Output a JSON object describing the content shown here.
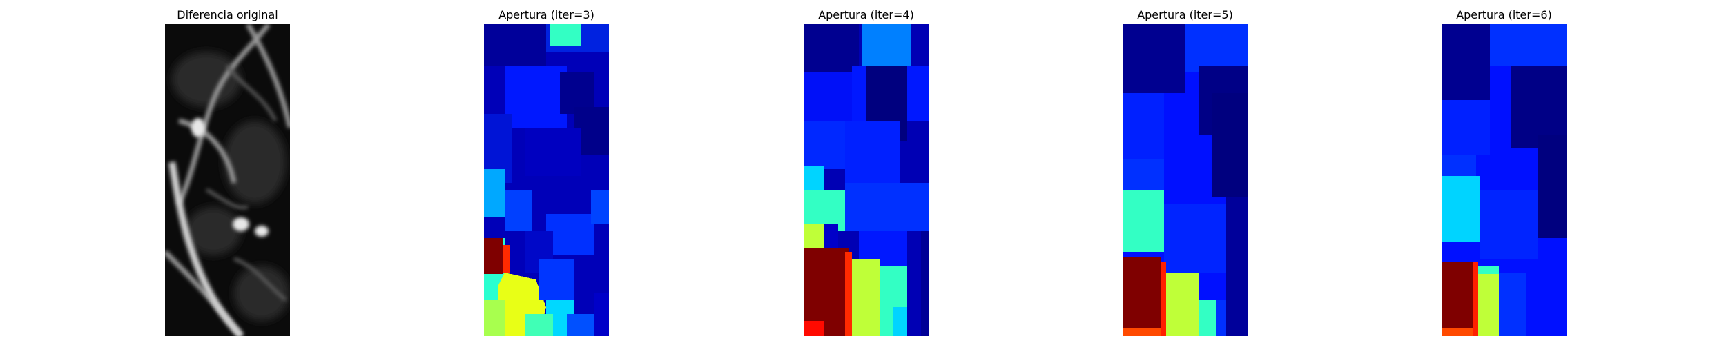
{
  "figure": {
    "panels": [
      {
        "title": "Diferencia original",
        "colormap": "gray"
      },
      {
        "title": "Apertura (iter=3)",
        "colormap": "jet"
      },
      {
        "title": "Apertura (iter=4)",
        "colormap": "jet"
      },
      {
        "title": "Apertura (iter=5)",
        "colormap": "jet"
      },
      {
        "title": "Apertura (iter=6)",
        "colormap": "jet"
      }
    ],
    "colors": {
      "background": "#ffffff",
      "jet_dark_blue": "#00007f",
      "jet_blue": "#0022ff",
      "jet_cyan": "#00d4ff",
      "jet_teal": "#33ffc4",
      "jet_yellow_green": "#bfff38",
      "jet_dark_red": "#7f0000",
      "jet_red": "#ff1a00"
    }
  }
}
